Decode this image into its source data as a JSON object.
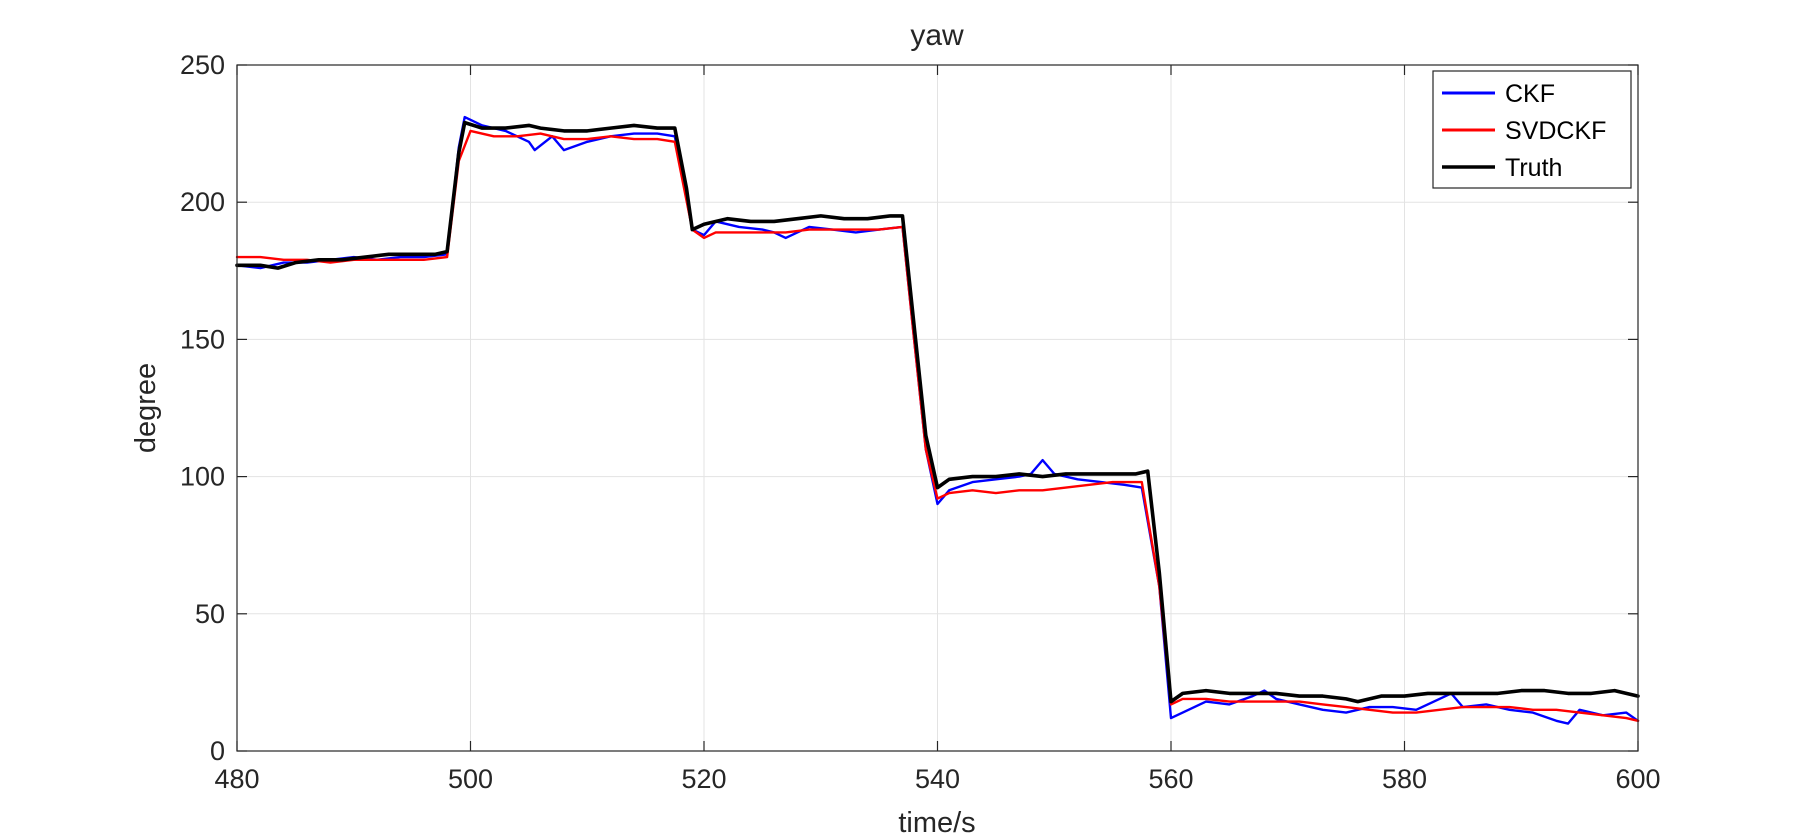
{
  "chart_data": {
    "type": "line",
    "title": "yaw",
    "xlabel": "time/s",
    "ylabel": "degree",
    "xlim": [
      480,
      600
    ],
    "ylim": [
      0,
      250
    ],
    "xticks": [
      480,
      500,
      520,
      540,
      560,
      580,
      600
    ],
    "yticks": [
      0,
      50,
      100,
      150,
      200,
      250
    ],
    "grid": true,
    "legend": {
      "position": "top-right",
      "entries": [
        "CKF",
        "SVDCKF",
        "Truth"
      ]
    },
    "series": [
      {
        "name": "CKF",
        "color": "#0000ff",
        "points": [
          [
            480,
            177
          ],
          [
            482,
            176
          ],
          [
            484,
            178
          ],
          [
            486,
            178
          ],
          [
            488,
            179
          ],
          [
            490,
            180
          ],
          [
            492,
            179
          ],
          [
            494,
            180
          ],
          [
            496,
            180
          ],
          [
            498,
            181
          ],
          [
            499,
            220
          ],
          [
            499.5,
            231
          ],
          [
            501,
            228
          ],
          [
            503,
            226
          ],
          [
            505,
            222
          ],
          [
            505.5,
            219
          ],
          [
            507,
            224
          ],
          [
            508,
            219
          ],
          [
            510,
            222
          ],
          [
            512,
            224
          ],
          [
            514,
            225
          ],
          [
            516,
            225
          ],
          [
            517.5,
            224
          ],
          [
            519,
            190
          ],
          [
            520,
            188
          ],
          [
            521,
            193
          ],
          [
            523,
            191
          ],
          [
            525,
            190
          ],
          [
            526,
            189
          ],
          [
            527,
            187
          ],
          [
            529,
            191
          ],
          [
            531,
            190
          ],
          [
            533,
            189
          ],
          [
            535,
            190
          ],
          [
            537,
            191
          ],
          [
            538,
            150
          ],
          [
            539,
            110
          ],
          [
            540,
            90
          ],
          [
            541,
            95
          ],
          [
            543,
            98
          ],
          [
            545,
            99
          ],
          [
            547,
            100
          ],
          [
            548,
            101
          ],
          [
            549,
            106
          ],
          [
            550,
            101
          ],
          [
            552,
            99
          ],
          [
            554,
            98
          ],
          [
            556,
            97
          ],
          [
            557.5,
            96
          ],
          [
            559,
            60
          ],
          [
            560,
            12
          ],
          [
            561,
            14
          ],
          [
            563,
            18
          ],
          [
            565,
            17
          ],
          [
            567,
            20
          ],
          [
            568,
            22
          ],
          [
            569,
            19
          ],
          [
            571,
            17
          ],
          [
            573,
            15
          ],
          [
            575,
            14
          ],
          [
            577,
            16
          ],
          [
            579,
            16
          ],
          [
            581,
            15
          ],
          [
            583,
            19
          ],
          [
            584,
            21
          ],
          [
            585,
            16
          ],
          [
            587,
            17
          ],
          [
            589,
            15
          ],
          [
            591,
            14
          ],
          [
            593,
            11
          ],
          [
            594,
            10
          ],
          [
            595,
            15
          ],
          [
            597,
            13
          ],
          [
            599,
            14
          ],
          [
            600,
            11
          ]
        ]
      },
      {
        "name": "SVDCKF",
        "color": "#ff0000",
        "points": [
          [
            480,
            180
          ],
          [
            482,
            180
          ],
          [
            484,
            179
          ],
          [
            486,
            179
          ],
          [
            488,
            178
          ],
          [
            490,
            179
          ],
          [
            492,
            179
          ],
          [
            494,
            179
          ],
          [
            496,
            179
          ],
          [
            498,
            180
          ],
          [
            499,
            215
          ],
          [
            500,
            226
          ],
          [
            502,
            224
          ],
          [
            504,
            224
          ],
          [
            506,
            225
          ],
          [
            508,
            223
          ],
          [
            510,
            223
          ],
          [
            512,
            224
          ],
          [
            514,
            223
          ],
          [
            516,
            223
          ],
          [
            517.5,
            222
          ],
          [
            519,
            190
          ],
          [
            520,
            187
          ],
          [
            521,
            189
          ],
          [
            523,
            189
          ],
          [
            525,
            189
          ],
          [
            527,
            189
          ],
          [
            529,
            190
          ],
          [
            531,
            190
          ],
          [
            533,
            190
          ],
          [
            535,
            190
          ],
          [
            537,
            191
          ],
          [
            538,
            150
          ],
          [
            539,
            110
          ],
          [
            540,
            92
          ],
          [
            541,
            94
          ],
          [
            543,
            95
          ],
          [
            545,
            94
          ],
          [
            547,
            95
          ],
          [
            549,
            95
          ],
          [
            551,
            96
          ],
          [
            553,
            97
          ],
          [
            555,
            98
          ],
          [
            557.5,
            98
          ],
          [
            559,
            60
          ],
          [
            560,
            17
          ],
          [
            561,
            19
          ],
          [
            563,
            19
          ],
          [
            565,
            18
          ],
          [
            567,
            18
          ],
          [
            569,
            18
          ],
          [
            571,
            18
          ],
          [
            573,
            17
          ],
          [
            575,
            16
          ],
          [
            577,
            15
          ],
          [
            579,
            14
          ],
          [
            581,
            14
          ],
          [
            583,
            15
          ],
          [
            585,
            16
          ],
          [
            587,
            16
          ],
          [
            589,
            16
          ],
          [
            591,
            15
          ],
          [
            593,
            15
          ],
          [
            595,
            14
          ],
          [
            597,
            13
          ],
          [
            599,
            12
          ],
          [
            600,
            11
          ]
        ]
      },
      {
        "name": "Truth",
        "color": "#000000",
        "points": [
          [
            480,
            177
          ],
          [
            482,
            177
          ],
          [
            483.5,
            176
          ],
          [
            485,
            178
          ],
          [
            487,
            179
          ],
          [
            489,
            179
          ],
          [
            491,
            180
          ],
          [
            493,
            181
          ],
          [
            495,
            181
          ],
          [
            497,
            181
          ],
          [
            498,
            182
          ],
          [
            499,
            218
          ],
          [
            499.5,
            229
          ],
          [
            501,
            227
          ],
          [
            503,
            227
          ],
          [
            505,
            228
          ],
          [
            506,
            227
          ],
          [
            508,
            226
          ],
          [
            510,
            226
          ],
          [
            512,
            227
          ],
          [
            514,
            228
          ],
          [
            516,
            227
          ],
          [
            517.5,
            227
          ],
          [
            518.5,
            205
          ],
          [
            519,
            190
          ],
          [
            520,
            192
          ],
          [
            522,
            194
          ],
          [
            524,
            193
          ],
          [
            526,
            193
          ],
          [
            528,
            194
          ],
          [
            530,
            195
          ],
          [
            532,
            194
          ],
          [
            534,
            194
          ],
          [
            536,
            195
          ],
          [
            537,
            195
          ],
          [
            538,
            155
          ],
          [
            539,
            115
          ],
          [
            540,
            96
          ],
          [
            541,
            99
          ],
          [
            543,
            100
          ],
          [
            545,
            100
          ],
          [
            547,
            101
          ],
          [
            549,
            100
          ],
          [
            551,
            101
          ],
          [
            553,
            101
          ],
          [
            555,
            101
          ],
          [
            557,
            101
          ],
          [
            558,
            102
          ],
          [
            559,
            65
          ],
          [
            560,
            18
          ],
          [
            561,
            21
          ],
          [
            563,
            22
          ],
          [
            565,
            21
          ],
          [
            567,
            21
          ],
          [
            569,
            21
          ],
          [
            571,
            20
          ],
          [
            573,
            20
          ],
          [
            575,
            19
          ],
          [
            576,
            18
          ],
          [
            578,
            20
          ],
          [
            580,
            20
          ],
          [
            582,
            21
          ],
          [
            584,
            21
          ],
          [
            586,
            21
          ],
          [
            588,
            21
          ],
          [
            590,
            22
          ],
          [
            592,
            22
          ],
          [
            594,
            21
          ],
          [
            596,
            21
          ],
          [
            598,
            22
          ],
          [
            600,
            20
          ]
        ]
      }
    ]
  }
}
